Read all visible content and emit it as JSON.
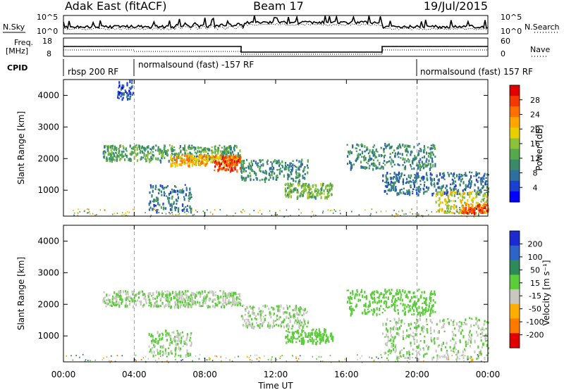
{
  "header": {
    "site": "Adak East (fitACF)",
    "beam": "Beam 17",
    "date": "19/Jul/2015"
  },
  "top_panels": {
    "nsky_label": "N.Sky",
    "nsearch_label": "N.Search",
    "noise_ticks": [
      "10^5",
      "10^0"
    ],
    "freq_label_line1": "Freq.",
    "freq_label_line2": "[MHz]",
    "freq_ticks": [
      "18",
      "8"
    ],
    "nave_label": "Nave",
    "nave_ticks": [
      "60",
      "0"
    ],
    "cpid_label": "CPID",
    "cpid_segments": [
      {
        "label": "rbsp 200 RF",
        "start_h": 0,
        "end_h": 4
      },
      {
        "label": "normalsound (fast) -157 RF",
        "start_h": 4,
        "end_h": 20
      },
      {
        "label": "normalsound (fast) 157 RF",
        "start_h": 20,
        "end_h": 24
      }
    ]
  },
  "chart_data": [
    {
      "type": "heatmap",
      "title": "Power",
      "ylabel": "Slant Range [km]",
      "xlabel": "",
      "x_ticks": [
        "00:00",
        "04:00",
        "08:00",
        "12:00",
        "16:00",
        "20:00",
        "00:00"
      ],
      "y_ticks": [
        1000,
        2000,
        3000,
        4000
      ],
      "ylim": [
        180,
        4500
      ],
      "xlim_hours": [
        0,
        24
      ],
      "colorbar": {
        "label": "Power [dB]",
        "ticks": [
          4,
          8,
          12,
          16,
          20,
          24,
          28
        ],
        "range": [
          0,
          32
        ],
        "colors": [
          "#0000ff",
          "#1b3fd1",
          "#2f6f9f",
          "#3a8a6a",
          "#56a84c",
          "#8cc23a",
          "#e8d000",
          "#ffa600",
          "#ff7000",
          "#f23a00",
          "#e00000"
        ]
      },
      "regions": [
        {
          "t0": 2.2,
          "t1": 10.0,
          "r0": 1950,
          "r1": 2450,
          "v": 12
        },
        {
          "t0": 6.0,
          "t1": 10.0,
          "r0": 1800,
          "r1": 2150,
          "v": 22
        },
        {
          "t0": 8.5,
          "t1": 10.0,
          "r0": 1650,
          "r1": 2100,
          "v": 28
        },
        {
          "t0": 10.0,
          "t1": 13.8,
          "r0": 1300,
          "r1": 2000,
          "v": 10
        },
        {
          "t0": 4.8,
          "t1": 7.2,
          "r0": 350,
          "r1": 1200,
          "v": 8
        },
        {
          "t0": 12.5,
          "t1": 15.2,
          "r0": 800,
          "r1": 1250,
          "v": 14
        },
        {
          "t0": 16.0,
          "t1": 21.0,
          "r0": 1700,
          "r1": 2500,
          "v": 10
        },
        {
          "t0": 18.0,
          "t1": 24.0,
          "r0": 900,
          "r1": 1600,
          "v": 8
        },
        {
          "t0": 21.0,
          "t1": 24.0,
          "r0": 300,
          "r1": 1000,
          "v": 18
        },
        {
          "t0": 22.5,
          "t1": 24.0,
          "r0": 300,
          "r1": 600,
          "v": 26
        },
        {
          "t0": 3.0,
          "t1": 4.0,
          "r0": 3900,
          "r1": 4500,
          "v": 6
        }
      ]
    },
    {
      "type": "heatmap",
      "title": "Velocity",
      "ylabel": "Slant Range [km]",
      "xlabel": "Time UT",
      "x_ticks": [
        "00:00",
        "04:00",
        "08:00",
        "12:00",
        "16:00",
        "20:00",
        "00:00"
      ],
      "y_ticks": [
        1000,
        2000,
        3000,
        4000
      ],
      "ylim": [
        180,
        4500
      ],
      "xlim_hours": [
        0,
        24
      ],
      "colorbar": {
        "label": "Velocity [m s⁻¹]",
        "ticks": [
          200,
          100,
          50,
          15,
          -15,
          -50,
          -100,
          -200
        ],
        "range": [
          -250,
          250
        ],
        "colors": [
          "#1b2bd0",
          "#2e64c8",
          "#2f8a5a",
          "#5bcc3a",
          "#c8c8c0",
          "#ffae00",
          "#ff7800",
          "#e00000"
        ]
      },
      "regions": [
        {
          "t0": 2.2,
          "t1": 10.0,
          "r0": 1950,
          "r1": 2450,
          "v": 0
        },
        {
          "t0": 10.0,
          "t1": 13.8,
          "r0": 1300,
          "r1": 2000,
          "v": 0
        },
        {
          "t0": 4.8,
          "t1": 7.2,
          "r0": 350,
          "r1": 1200,
          "v": 0
        },
        {
          "t0": 12.5,
          "t1": 15.2,
          "r0": 800,
          "r1": 1250,
          "v": 40
        },
        {
          "t0": 16.0,
          "t1": 21.0,
          "r0": 1700,
          "r1": 2500,
          "v": 20
        },
        {
          "t0": 18.0,
          "t1": 24.0,
          "r0": 300,
          "r1": 1600,
          "v": 0
        }
      ]
    }
  ]
}
